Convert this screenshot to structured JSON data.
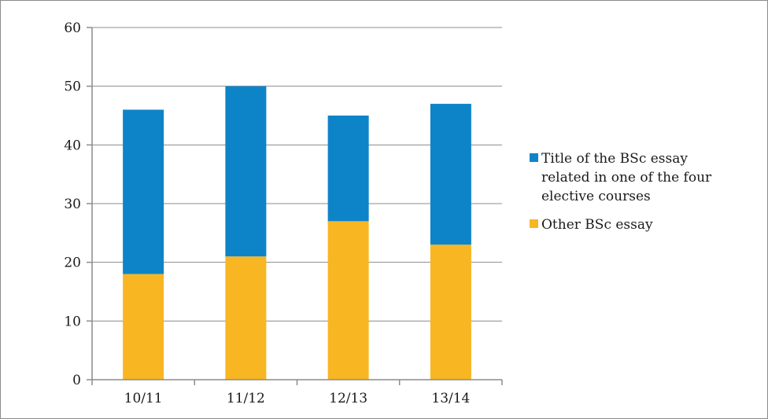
{
  "chart_data": {
    "type": "bar",
    "stacked": true,
    "categories": [
      "10/11",
      "11/12",
      "12/13",
      "13/14"
    ],
    "series": [
      {
        "name": "Other BSc essay",
        "values": [
          18,
          21,
          27,
          23
        ],
        "color": "#F8B623"
      },
      {
        "name": "Title of the BSc essay related in one of the four elective courses",
        "values": [
          28,
          29,
          18,
          24
        ],
        "color": "#0E84C8"
      }
    ],
    "legend_lines": [
      [
        "Title of the BSc essay",
        "related in one of the four",
        "elective courses"
      ],
      [
        "Other BSc essay"
      ]
    ],
    "yticks": [
      "0",
      "10",
      "20",
      "30",
      "40",
      "50",
      "60"
    ],
    "ylim": [
      0,
      60
    ],
    "grid": true,
    "legend_position": "right"
  }
}
